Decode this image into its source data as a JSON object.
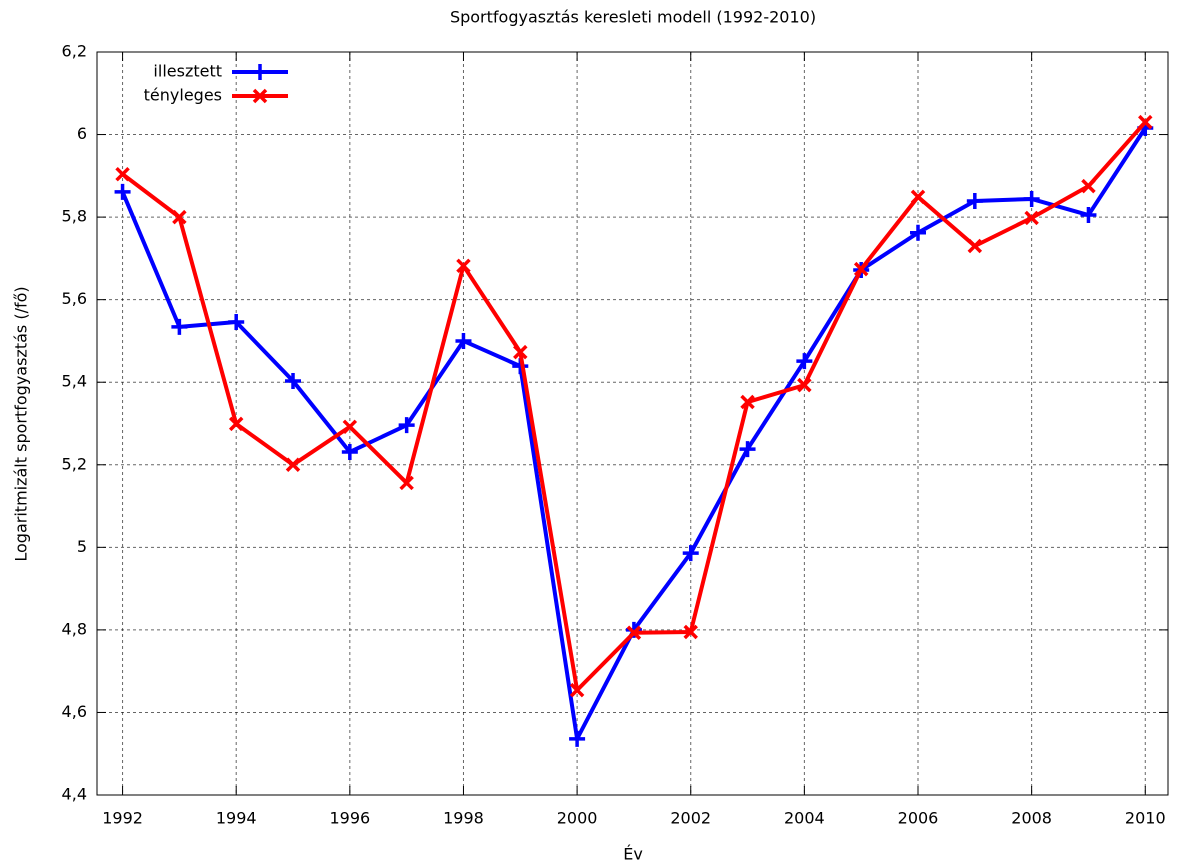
{
  "chart_data": {
    "type": "line",
    "title": "Sportfogyasztás keresleti modell (1992-2010)",
    "x_label": "Év",
    "y_label": "Logaritmizált sportfogyasztás (/fő)",
    "x": [
      1992,
      1993,
      1994,
      1995,
      1996,
      1997,
      1998,
      1999,
      2000,
      2001,
      2002,
      2003,
      2004,
      2005,
      2006,
      2007,
      2008,
      2009,
      2010
    ],
    "series": [
      {
        "name": "illesztett",
        "color": "#0000ff",
        "marker": "plus",
        "values": [
          5.861,
          5.534,
          5.546,
          5.403,
          5.231,
          5.296,
          5.5,
          5.439,
          4.536,
          4.8,
          4.986,
          5.238,
          5.451,
          5.672,
          5.762,
          5.839,
          5.844,
          5.805,
          6.016
        ]
      },
      {
        "name": "tényleges",
        "color": "#ff0000",
        "marker": "cross",
        "values": [
          5.904,
          5.8,
          5.299,
          5.2,
          5.292,
          5.156,
          5.682,
          5.473,
          4.654,
          4.793,
          4.795,
          5.352,
          5.393,
          5.674,
          5.849,
          5.73,
          5.798,
          5.875,
          6.03
        ]
      }
    ],
    "xlim": [
      1991.55,
      2010.4
    ],
    "xticks": [
      1992,
      1994,
      1996,
      1998,
      2000,
      2002,
      2004,
      2006,
      2008,
      2010
    ],
    "ylim": [
      4.4,
      6.2
    ],
    "yticks": [
      {
        "value": 4.4,
        "label": "4,4"
      },
      {
        "value": 4.6,
        "label": "4,6"
      },
      {
        "value": 4.8,
        "label": "4,8"
      },
      5,
      {
        "value": 5.2,
        "label": "5,2"
      },
      {
        "value": 5.4,
        "label": "5,4"
      },
      {
        "value": 5.6,
        "label": "5,6"
      },
      {
        "value": 5.8,
        "label": "5,8"
      },
      6,
      {
        "value": 6.2,
        "label": "6,2"
      }
    ],
    "grid": true,
    "legend": "top-left"
  }
}
